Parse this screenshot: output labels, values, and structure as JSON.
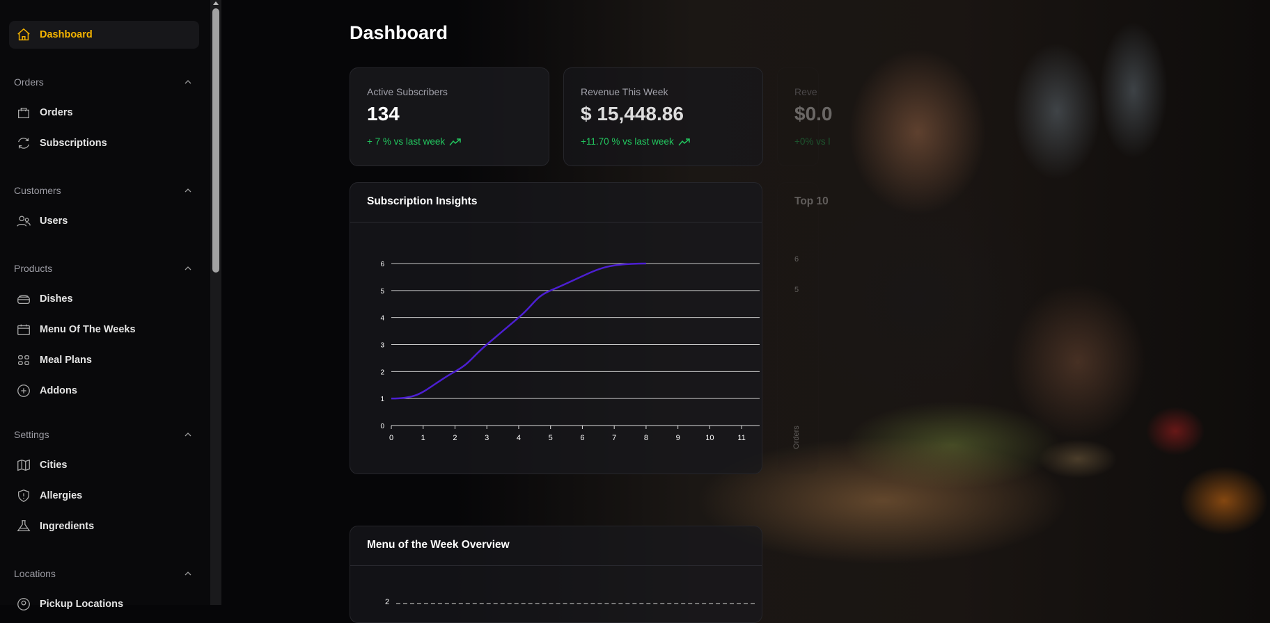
{
  "sidebar": {
    "dashboard": "Dashboard",
    "sections": [
      {
        "title": "Orders",
        "items": [
          {
            "label": "Orders",
            "icon": "shopping-bag-icon"
          },
          {
            "label": "Subscriptions",
            "icon": "refresh-icon"
          }
        ]
      },
      {
        "title": "Customers",
        "items": [
          {
            "label": "Users",
            "icon": "users-icon"
          }
        ]
      },
      {
        "title": "Products",
        "items": [
          {
            "label": "Dishes",
            "icon": "dish-icon"
          },
          {
            "label": "Menu Of The Weeks",
            "icon": "calendar-icon"
          },
          {
            "label": "Meal Plans",
            "icon": "grid-icon"
          },
          {
            "label": "Addons",
            "icon": "plus-circle-icon"
          }
        ]
      },
      {
        "title": "Settings",
        "items": [
          {
            "label": "Cities",
            "icon": "map-icon"
          },
          {
            "label": "Allergies",
            "icon": "shield-alert-icon"
          },
          {
            "label": "Ingredients",
            "icon": "flask-icon"
          }
        ]
      },
      {
        "title": "Locations",
        "items": [
          {
            "label": "Pickup Locations",
            "icon": "map-pin-icon"
          }
        ]
      }
    ]
  },
  "colors": {
    "accent": "#f5b400",
    "positive": "#22c55e",
    "line": "#4c1fd1"
  },
  "page": {
    "title": "Dashboard"
  },
  "stats": [
    {
      "label": "Active Subscribers",
      "value": "134",
      "delta": "+ 7 % vs last week"
    },
    {
      "label": "Revenue This Week",
      "value": "$ 15,448.86",
      "delta": "+11.70 % vs last week"
    },
    {
      "label": "Reve",
      "value": "$0.0",
      "delta": "+0% vs l"
    }
  ],
  "insights": {
    "title": "Subscription Insights"
  },
  "top10": {
    "title": "Top 10",
    "ylabel": "Orders",
    "ticks": [
      "6",
      "5"
    ]
  },
  "menu_overview": {
    "title": "Menu of the Week Overview",
    "first_tick": "2"
  },
  "chart_data": {
    "type": "line",
    "title": "Subscription Insights",
    "x": [
      0,
      2,
      3,
      4,
      5,
      8
    ],
    "y": [
      1,
      2,
      3,
      4,
      5,
      6
    ],
    "xlim": [
      0,
      11
    ],
    "ylim": [
      0,
      6
    ],
    "xticks": [
      "0",
      "1",
      "2",
      "3",
      "4",
      "5",
      "6",
      "7",
      "8",
      "9",
      "10",
      "11"
    ],
    "yticks": [
      "0",
      "1",
      "2",
      "3",
      "4",
      "5",
      "6"
    ],
    "grid": "horizontal",
    "smooth": true
  }
}
